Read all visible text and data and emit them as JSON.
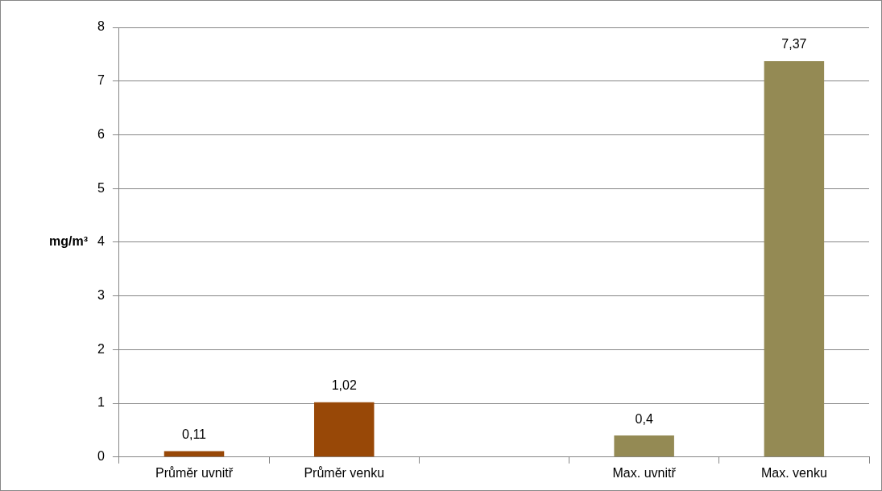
{
  "chart_data": {
    "type": "bar",
    "ylabel": "mg/m³",
    "categories": [
      "Průměr uvnitř",
      "Průměr venku",
      null,
      "Max. uvnitř",
      "Max. venku"
    ],
    "values": [
      0.11,
      1.02,
      null,
      0.4,
      7.37
    ],
    "colors": [
      "#984807",
      "#984807",
      "#984807",
      "#948a54",
      "#948a54"
    ],
    "value_labels": [
      "0,11",
      "1,02",
      null,
      "0,4",
      "7,37"
    ],
    "ylim": [
      0,
      8
    ],
    "yticks": [
      0,
      1,
      2,
      3,
      4,
      5,
      6,
      7,
      8
    ],
    "grid": "y",
    "legend": false
  }
}
